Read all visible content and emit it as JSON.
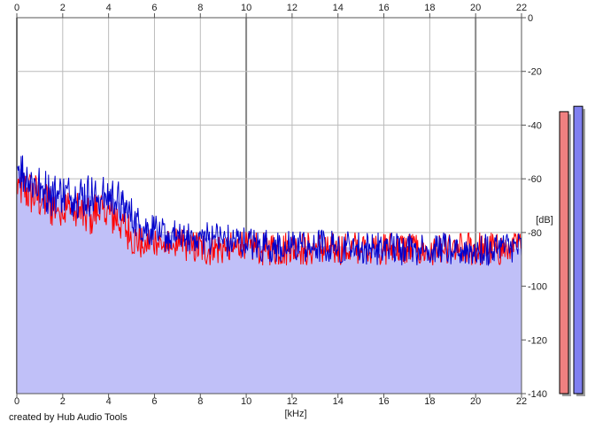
{
  "footer": {
    "credit": "created by Hub Audio Tools"
  },
  "chart_data": {
    "type": "line",
    "xlabel": "[kHz]",
    "ylabel": "[dB]",
    "xlim": [
      0,
      22
    ],
    "ylim": [
      -140,
      0
    ],
    "x_ticks": [
      0,
      2,
      4,
      6,
      8,
      10,
      12,
      14,
      16,
      18,
      20,
      22
    ],
    "y_ticks": [
      0,
      -20,
      -40,
      -60,
      -80,
      -100,
      -120,
      -140
    ],
    "grid": true,
    "fill_color": "#c0c0f8",
    "series": [
      {
        "color": "#ff0000",
        "x": [
          0,
          0.5,
          1,
          1.5,
          2,
          2.5,
          3,
          3.5,
          4,
          4.5,
          5,
          5.5,
          6,
          6.5,
          7,
          7.5,
          8,
          8.5,
          9,
          9.5,
          10,
          10.5,
          11,
          12,
          13,
          14,
          15,
          16,
          17,
          18,
          19,
          20,
          21,
          22
        ],
        "y": [
          -62,
          -65,
          -67,
          -70,
          -71,
          -72,
          -74,
          -72,
          -73,
          -75,
          -82,
          -84,
          -83,
          -85,
          -84,
          -85,
          -86,
          -86,
          -86,
          -86,
          -84,
          -86,
          -86,
          -86,
          -86,
          -86,
          -86,
          -86,
          -86,
          -87,
          -86,
          -86,
          -86,
          -86
        ]
      },
      {
        "color": "#0000cc",
        "x": [
          0,
          0.5,
          1,
          1.5,
          2,
          2.5,
          3,
          3.5,
          4,
          4.5,
          5,
          5.5,
          6,
          6.5,
          7,
          7.5,
          8,
          8.5,
          9,
          9.5,
          10,
          10.5,
          11,
          12,
          13,
          14,
          15,
          16,
          17,
          18,
          19,
          20,
          21,
          22
        ],
        "y": [
          -55,
          -60,
          -63,
          -66,
          -66,
          -67,
          -66,
          -67,
          -66,
          -69,
          -75,
          -78,
          -79,
          -81,
          -81,
          -81,
          -82,
          -82,
          -83,
          -83,
          -84,
          -85,
          -85,
          -85,
          -85,
          -85,
          -86,
          -86,
          -86,
          -86,
          -86,
          -86,
          -86,
          -86
        ]
      }
    ],
    "level_meters": [
      {
        "color": "#f08080",
        "level_db": -35
      },
      {
        "color": "#8080f0",
        "level_db": -33
      }
    ]
  }
}
